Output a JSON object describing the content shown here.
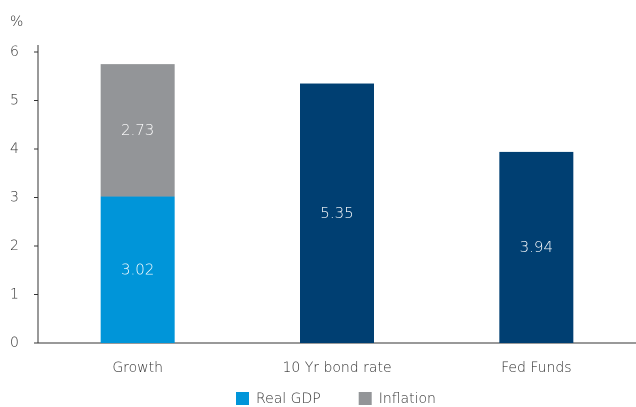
{
  "chart_data": {
    "type": "bar",
    "stacked": true,
    "y_label": "%",
    "categories": [
      "Growth",
      "10 Yr bond rate",
      "Fed Funds"
    ],
    "series": [
      {
        "name": "Real GDP",
        "color": "#0095d9",
        "values": [
          3.02,
          null,
          null
        ]
      },
      {
        "name": "Inflation",
        "color": "#939598",
        "values": [
          2.73,
          null,
          null
        ]
      },
      {
        "color": "#003f72",
        "values": [
          null,
          5.35,
          3.94
        ]
      }
    ],
    "ylim": [
      0,
      6
    ],
    "yticks": [
      0,
      1,
      2,
      3,
      4,
      5,
      6
    ],
    "grid": false,
    "legend": "bottom"
  }
}
